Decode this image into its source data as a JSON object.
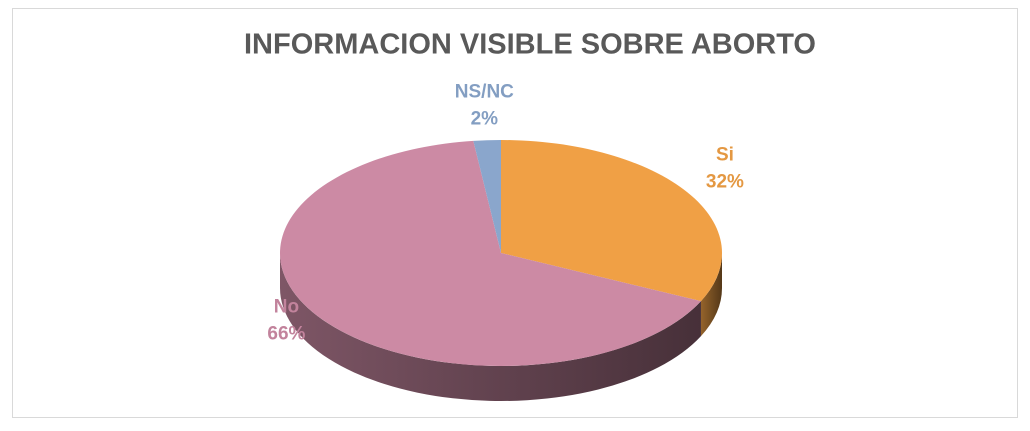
{
  "chart_data": {
    "type": "pie",
    "title": "INFORMACION VISIBLE SOBRE ABORTO",
    "categories": [
      "Si",
      "No",
      "NS/NC"
    ],
    "values": [
      32,
      66,
      2
    ],
    "value_labels": [
      "32%",
      "66%",
      "2%"
    ],
    "colors": [
      "#f0a045",
      "#cc8aa4",
      "#8aa6cc"
    ]
  }
}
